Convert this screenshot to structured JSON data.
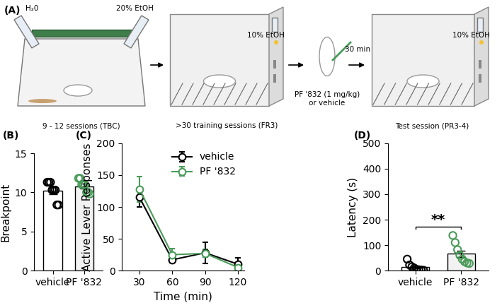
{
  "diagram": {
    "label": "(A)",
    "texts": {
      "water": "H₂0",
      "ethanol_home": "20% EtOH",
      "home_sessions": "9 - 12 sessions (TBC)",
      "ethanol_training": "10% EtOH",
      "training_sessions": ">30 training sessions (FR3)",
      "treatment": "PF '832 (1 mg/kg)\nor vehicle",
      "delay": "30 min",
      "ethanol_test": "10% EtOH",
      "test_session": "Test session (PR3-4)"
    }
  },
  "chart_data": [
    {
      "type": "bar",
      "title": "(B)",
      "ylabel": "Breakpoint",
      "categories": [
        "vehicle",
        "PF '832"
      ],
      "values": [
        10.2,
        10.8
      ],
      "errors": [
        0.45,
        0.3
      ],
      "points": [
        [
          11.3,
          11.3,
          11.3,
          10.3,
          10.3,
          10.3,
          8.4,
          8.4
        ],
        [
          11.8,
          11.8,
          11.0,
          11.0,
          11.0,
          10.0,
          10.0,
          9.8
        ]
      ],
      "colors": [
        "#000000",
        "#4a9b5a"
      ],
      "marker": "o",
      "ylim": [
        0,
        15
      ],
      "yticks": [
        0,
        5,
        10,
        15
      ]
    },
    {
      "type": "line",
      "title": "(C)",
      "xlabel": "Time (min)",
      "ylabel": "Active Lever Responses",
      "x": [
        30,
        60,
        90,
        120
      ],
      "series": [
        {
          "name": "vehicle",
          "color": "#000000",
          "marker": "o",
          "values": [
            115,
            17,
            28,
            10
          ],
          "errors": [
            15,
            5,
            17,
            10
          ]
        },
        {
          "name": "PF '832",
          "color": "#4a9b5a",
          "marker": "o",
          "values": [
            128,
            25,
            27,
            5
          ],
          "errors": [
            20,
            10,
            6,
            4
          ]
        }
      ],
      "xlim": [
        14,
        126
      ],
      "xticks": [
        30,
        60,
        90,
        120
      ],
      "ylim": [
        0,
        200
      ],
      "yticks": [
        0,
        50,
        100,
        150,
        200
      ],
      "legend": "upper right"
    },
    {
      "type": "bar",
      "title": "(D)",
      "ylabel": "Latency (s)",
      "categories": [
        "vehicle",
        "PF '832"
      ],
      "values": [
        13,
        66
      ],
      "errors": [
        5,
        13
      ],
      "points": [
        [
          45,
          22,
          15,
          10,
          5,
          3,
          2,
          1
        ],
        [
          138,
          110,
          82,
          60,
          45,
          35,
          30,
          28
        ]
      ],
      "colors": [
        "#000000",
        "#4a9b5a"
      ],
      "marker": "o",
      "ylim": [
        0,
        500
      ],
      "yticks": [
        0,
        100,
        200,
        300,
        400,
        500
      ],
      "annotations": [
        {
          "text": "**",
          "between": [
            "vehicle",
            "PF '832"
          ]
        }
      ]
    }
  ]
}
